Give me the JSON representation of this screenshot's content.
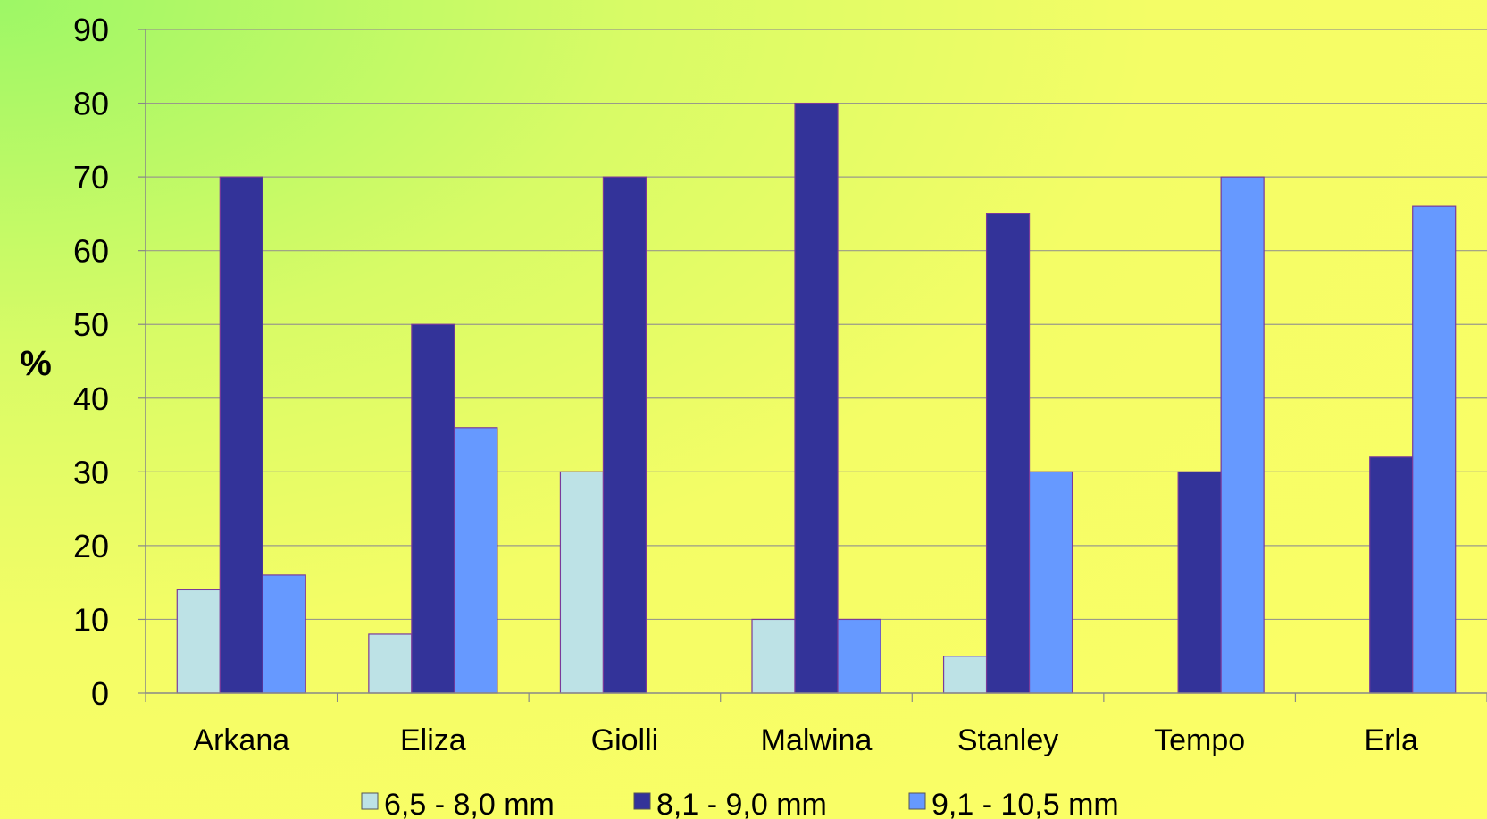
{
  "chart_data": {
    "type": "bar",
    "title": "",
    "xlabel": "",
    "ylabel": "%",
    "ylim": [
      0,
      90
    ],
    "yticks": [
      0,
      10,
      20,
      30,
      40,
      50,
      60,
      70,
      80,
      90
    ],
    "grid": true,
    "legend": "bottom",
    "categories": [
      "Arkana",
      "Eliza",
      "Giolli",
      "Malwina",
      "Stanley",
      "Tempo",
      "Erla"
    ],
    "series": [
      {
        "name": "6,5 - 8,0 mm",
        "color": "#bde2e6",
        "values": [
          14,
          8,
          30,
          10,
          5,
          0,
          0
        ]
      },
      {
        "name": "8,1 - 9,0 mm",
        "color": "#333399",
        "values": [
          70,
          50,
          70,
          80,
          65,
          30,
          32
        ]
      },
      {
        "name": "9,1 - 10,5 mm",
        "color": "#6699ff",
        "values": [
          16,
          36,
          0,
          10,
          30,
          70,
          66
        ]
      }
    ]
  }
}
